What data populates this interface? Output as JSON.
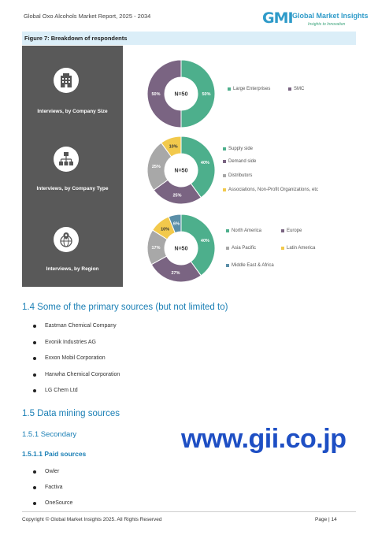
{
  "header": {
    "report_title": "Global Oxo Alcohols Market Report, 2025 - 2034",
    "brand_mark": "GMI",
    "brand_name": "Global Market Insights",
    "brand_tagline": "Insights to Innovation"
  },
  "figure": {
    "title": "Figure 7:  Breakdown of respondents",
    "panels": [
      {
        "label": "Interviews, by Company Size",
        "icon": "building-icon"
      },
      {
        "label": "Interviews, by Company Type",
        "icon": "org-chart-icon"
      },
      {
        "label": "Interviews, by Region",
        "icon": "globe-pin-icon"
      }
    ]
  },
  "chart_data": [
    {
      "type": "pie",
      "center_label": "N=50",
      "categories": [
        "Large Enterprises",
        "SMC"
      ],
      "values": [
        50,
        50
      ],
      "value_labels": [
        "50%",
        "50%"
      ],
      "colors": [
        "#4daf8c",
        "#7a6482"
      ]
    },
    {
      "type": "pie",
      "center_label": "N=50",
      "categories": [
        "Supply side",
        "Demand side",
        "Distributors",
        "Associations, Non-Profit Organizations, etc"
      ],
      "values": [
        40,
        25,
        25,
        10
      ],
      "value_labels": [
        "40%",
        "25%",
        "25%",
        "10%"
      ],
      "colors": [
        "#4daf8c",
        "#7a6482",
        "#a8a8a8",
        "#f2c94c"
      ]
    },
    {
      "type": "pie",
      "center_label": "N=50",
      "categories": [
        "North America",
        "Europe",
        "Asia Pacific",
        "Latin America",
        "Middle East & Africa"
      ],
      "values": [
        40,
        27,
        17,
        10,
        6
      ],
      "value_labels": [
        "40%",
        "27%",
        "17%",
        "10%",
        "6%"
      ],
      "colors": [
        "#4daf8c",
        "#7a6482",
        "#a8a8a8",
        "#f2c94c",
        "#5b8fa8"
      ]
    }
  ],
  "sections": {
    "primary_heading": "1.4 Some of the primary sources (but not limited to)",
    "primary_sources": [
      "Eastman Chemical Company",
      "Evonik Industries AG",
      "Exxon Mobil Corporation",
      "Hanwha Chemical Corporation",
      "LG Chem Ltd"
    ],
    "mining_heading": "1.5 Data mining sources",
    "secondary_heading": "1.5.1 Secondary",
    "paid_heading": "1.5.1.1 Paid sources",
    "paid_sources": [
      "Owler",
      "Factiva",
      "OneSource"
    ]
  },
  "watermark": "www.gii.co.jp",
  "footer": {
    "copyright": "Copyright © Global Market Insights 2025. All Rights Reserved",
    "page": "Page | 14"
  }
}
